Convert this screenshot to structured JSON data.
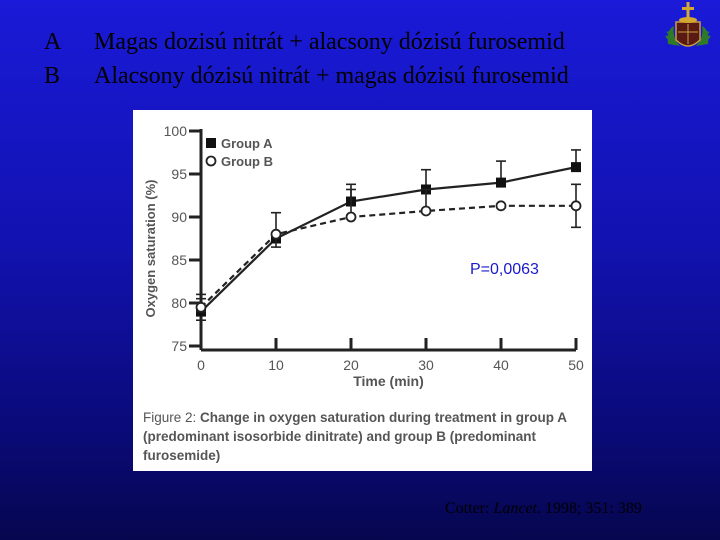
{
  "slide": {
    "line_a_letter": "A",
    "line_a_text": "Magas dozisú nitrát + alacsony dózisú furosemid",
    "line_b_letter": "B",
    "line_b_text": "Alacsony dózisú nitrát + magas dózisú furosemid",
    "emblem_icon": "coat-of-arms-icon",
    "p_value": "P=0,0063",
    "citation_author": "Cotter: ",
    "citation_journal": "Lancet",
    "citation_rest": ". 1998; 351: 389"
  },
  "caption": {
    "prefix": "Figure 2: ",
    "bold_text": "Change in oxygen saturation during treatment in group A (predominant isosorbide dinitrate) and group B (predominant furosemide)"
  },
  "chart_data": {
    "type": "line",
    "xlabel": "Time (min)",
    "ylabel": "Oxygen saturation (%)",
    "x": [
      0,
      10,
      20,
      30,
      40,
      50
    ],
    "x_ticks": [
      "0",
      "10",
      "20",
      "30",
      "40",
      "50"
    ],
    "y_ticks": [
      "75",
      "80",
      "85",
      "90",
      "95",
      "100"
    ],
    "xlim": [
      0,
      50
    ],
    "ylim": [
      75,
      100
    ],
    "legend_position": "top-left",
    "series": [
      {
        "name": "Group A",
        "marker": "filled-square",
        "line": "solid",
        "values": [
          79.0,
          87.5,
          91.8,
          93.2,
          94.0,
          95.8
        ],
        "err_high": [
          80.5,
          90.5,
          93.8,
          95.5,
          96.5,
          97.8
        ],
        "err_low": [
          78.0,
          87.5,
          91.8,
          93.2,
          94.0,
          95.8
        ]
      },
      {
        "name": "Group B",
        "marker": "open-circle",
        "line": "dashed",
        "values": [
          79.5,
          88.0,
          90.0,
          90.7,
          91.3,
          91.3
        ],
        "err_high": [
          81.0,
          88.0,
          93.2,
          93.2,
          91.3,
          93.8
        ],
        "err_low": [
          79.0,
          86.5,
          90.0,
          90.7,
          91.3,
          88.8
        ]
      }
    ]
  }
}
